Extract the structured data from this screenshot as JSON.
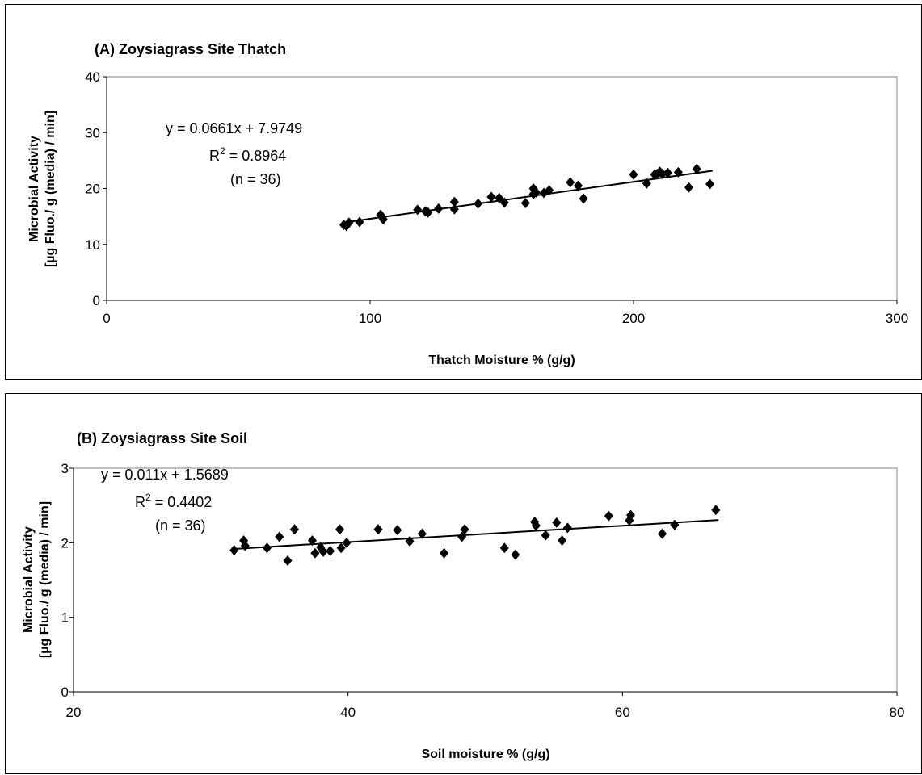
{
  "chart_data": [
    {
      "type": "scatter",
      "title": "(A) Zoysiagrass Site Thatch",
      "xlabel": "Thatch Moisture % (g/g)",
      "ylabel_lines": [
        "Microbial Activity",
        "[µg Fluo./ g (media) / min]"
      ],
      "xlim": [
        0,
        300
      ],
      "ylim": [
        0,
        40
      ],
      "xticks": [
        0,
        100,
        200,
        300
      ],
      "yticks": [
        0,
        10,
        20,
        30,
        40
      ],
      "xtick_labels": [
        "0",
        "100",
        "200",
        "300"
      ],
      "ytick_labels": [
        "0",
        "10",
        "20",
        "30",
        "40"
      ],
      "grid": false,
      "marker": "diamond",
      "marker_color": "#000000",
      "annotation": {
        "equation": "y = 0.0661x + 7.9749",
        "r2_prefix": "R",
        "r2_sup": "2",
        "r2_suffix": " = 0.8964",
        "n": "(n = 36)"
      },
      "trendline": {
        "slope": 0.0661,
        "intercept": 7.9749,
        "x_range": [
          90,
          230
        ]
      },
      "points": [
        [
          90,
          13.5
        ],
        [
          91,
          13.3
        ],
        [
          92,
          13.9
        ],
        [
          96,
          14.0
        ],
        [
          104,
          15.3
        ],
        [
          105,
          14.5
        ],
        [
          118,
          16.2
        ],
        [
          121,
          15.9
        ],
        [
          122,
          15.7
        ],
        [
          126,
          16.4
        ],
        [
          132,
          17.6
        ],
        [
          132,
          16.3
        ],
        [
          141,
          17.3
        ],
        [
          146,
          18.5
        ],
        [
          149,
          18.3
        ],
        [
          151,
          17.5
        ],
        [
          159,
          17.4
        ],
        [
          162,
          20.0
        ],
        [
          162,
          19.0
        ],
        [
          166,
          19.2
        ],
        [
          168,
          19.7
        ],
        [
          176,
          21.1
        ],
        [
          179,
          20.5
        ],
        [
          181,
          18.2
        ],
        [
          200,
          22.5
        ],
        [
          205,
          20.9
        ],
        [
          208,
          22.5
        ],
        [
          210,
          23.0
        ],
        [
          211,
          22.6
        ],
        [
          213,
          22.8
        ],
        [
          217,
          22.9
        ],
        [
          221,
          20.2
        ],
        [
          224,
          23.5
        ],
        [
          229,
          20.8
        ],
        [
          209,
          22.6
        ],
        [
          163,
          19.3
        ]
      ]
    },
    {
      "type": "scatter",
      "title": "(B) Zoysiagrass Site Soil",
      "xlabel": "Soil moisture % (g/g)",
      "ylabel_lines": [
        "Microbial Activity",
        "[µg Fluo./ g (media) / min]"
      ],
      "xlim": [
        20,
        80
      ],
      "ylim": [
        0,
        3
      ],
      "xticks": [
        20,
        40,
        60,
        80
      ],
      "yticks": [
        0,
        1,
        2,
        3
      ],
      "xtick_labels": [
        "20",
        "40",
        "60",
        "80"
      ],
      "ytick_labels": [
        "0",
        "1",
        "2",
        "3"
      ],
      "grid": false,
      "marker": "diamond",
      "marker_color": "#000000",
      "annotation": {
        "equation": "y = 0.011x + 1.5689",
        "r2_prefix": "R",
        "r2_sup": "2",
        "r2_suffix": " = 0.4402",
        "n": "(n = 36)"
      },
      "trendline": {
        "slope": 0.011,
        "intercept": 1.5689,
        "x_range": [
          31.7,
          67
        ]
      },
      "points": [
        [
          31.7,
          1.9
        ],
        [
          32.4,
          2.03
        ],
        [
          32.5,
          1.96
        ],
        [
          34.1,
          1.93
        ],
        [
          35.0,
          2.08
        ],
        [
          35.6,
          1.76
        ],
        [
          36.1,
          2.18
        ],
        [
          37.4,
          2.03
        ],
        [
          37.6,
          1.86
        ],
        [
          38.0,
          1.94
        ],
        [
          38.2,
          1.88
        ],
        [
          38.7,
          1.89
        ],
        [
          39.4,
          2.18
        ],
        [
          39.5,
          1.93
        ],
        [
          39.9,
          2.0
        ],
        [
          42.2,
          2.18
        ],
        [
          43.6,
          2.17
        ],
        [
          44.5,
          2.02
        ],
        [
          45.4,
          2.12
        ],
        [
          47.0,
          1.86
        ],
        [
          48.3,
          2.08
        ],
        [
          48.5,
          2.18
        ],
        [
          51.4,
          1.93
        ],
        [
          52.2,
          1.84
        ],
        [
          53.6,
          2.28
        ],
        [
          53.7,
          2.23
        ],
        [
          54.4,
          2.1
        ],
        [
          55.2,
          2.27
        ],
        [
          55.6,
          2.03
        ],
        [
          56.0,
          2.2
        ],
        [
          59.0,
          2.36
        ],
        [
          60.5,
          2.3
        ],
        [
          60.6,
          2.37
        ],
        [
          62.9,
          2.12
        ],
        [
          63.8,
          2.24
        ],
        [
          66.8,
          2.44
        ]
      ]
    }
  ]
}
